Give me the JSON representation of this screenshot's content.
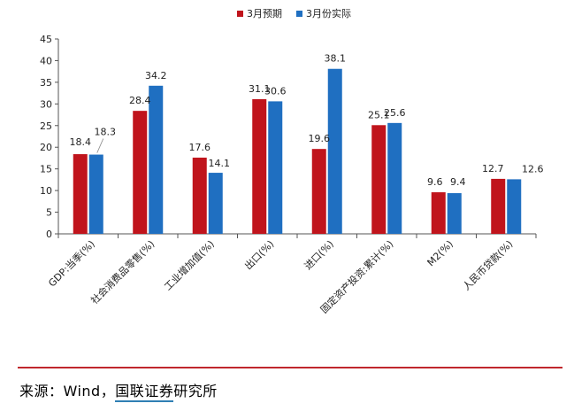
{
  "chart_data": {
    "type": "bar",
    "categories": [
      "GDP:当季(%)",
      "社会消费品零售(%)",
      "工业增加值(%)",
      "出口(%)",
      "进口(%)",
      "固定资产投资:累计(%)",
      "M2(%)",
      "人民币贷款(%)"
    ],
    "series": [
      {
        "name": "3月预期",
        "color": "#c0141c",
        "values": [
          18.4,
          28.4,
          17.6,
          31.1,
          19.6,
          25.1,
          9.6,
          12.7
        ],
        "labels": [
          "18.4",
          "28.4",
          "17.6",
          "31.1",
          "19.6",
          "25.1",
          "9.6",
          "12.7"
        ]
      },
      {
        "name": "3月份实际",
        "color": "#1f6fc1",
        "values": [
          18.3,
          34.2,
          14.1,
          30.6,
          38.1,
          25.6,
          9.4,
          12.6
        ],
        "labels": [
          "18.3",
          "34.2",
          "14.1",
          "30.6",
          "38.1",
          "25.6",
          "9.4",
          "12.6"
        ]
      }
    ],
    "ylim": [
      0,
      45
    ],
    "yticks": [
      "0",
      "5",
      "10",
      "15",
      "20",
      "25",
      "30",
      "35",
      "40",
      "45"
    ],
    "legend_position": "top-center",
    "grid": false
  },
  "source": {
    "prefix": "来源：Wind，",
    "brand": "国联证券",
    "suffix": "研究所"
  }
}
